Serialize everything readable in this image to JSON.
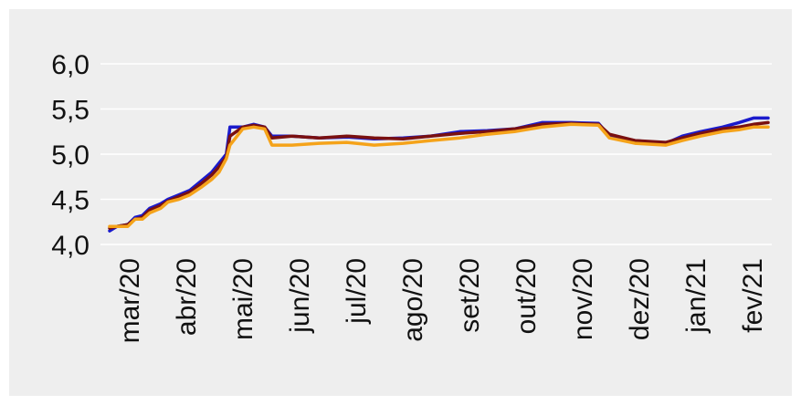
{
  "chart_data": {
    "type": "line",
    "title": "",
    "xlabel": "",
    "ylabel": "",
    "x_tick_labels": [
      "mar/20",
      "abr/20",
      "mai/20",
      "jun/20",
      "jul/20",
      "ago/20",
      "set/20",
      "out/20",
      "nov/20",
      "dez/20",
      "jan/21",
      "fev/21"
    ],
    "y_tick_labels": [
      "4,0",
      "4,5",
      "5,0",
      "5,5",
      "6,0"
    ],
    "ylim": [
      4.0,
      6.0
    ],
    "xlim": [
      "2020-02-26",
      "2021-02-28"
    ],
    "grid": "horizontal",
    "series": [
      {
        "color": "#1a1acc",
        "points": [
          [
            "2020-03-02",
            4.15
          ],
          [
            "2020-03-06",
            4.2
          ],
          [
            "2020-03-12",
            4.22
          ],
          [
            "2020-03-16",
            4.3
          ],
          [
            "2020-03-20",
            4.32
          ],
          [
            "2020-03-24",
            4.4
          ],
          [
            "2020-03-30",
            4.45
          ],
          [
            "2020-04-03",
            4.5
          ],
          [
            "2020-04-09",
            4.55
          ],
          [
            "2020-04-15",
            4.6
          ],
          [
            "2020-04-21",
            4.7
          ],
          [
            "2020-04-27",
            4.8
          ],
          [
            "2020-05-01",
            4.9
          ],
          [
            "2020-05-05",
            5.0
          ],
          [
            "2020-05-07",
            5.3
          ],
          [
            "2020-05-14",
            5.3
          ],
          [
            "2020-05-20",
            5.33
          ],
          [
            "2020-05-26",
            5.3
          ],
          [
            "2020-05-30",
            5.2
          ],
          [
            "2020-06-10",
            5.2
          ],
          [
            "2020-06-25",
            5.18
          ],
          [
            "2020-07-10",
            5.19
          ],
          [
            "2020-07-25",
            5.17
          ],
          [
            "2020-08-10",
            5.18
          ],
          [
            "2020-08-25",
            5.2
          ],
          [
            "2020-09-10",
            5.25
          ],
          [
            "2020-09-25",
            5.26
          ],
          [
            "2020-10-10",
            5.28
          ],
          [
            "2020-10-25",
            5.35
          ],
          [
            "2020-11-10",
            5.35
          ],
          [
            "2020-11-25",
            5.34
          ],
          [
            "2020-12-01",
            5.2
          ],
          [
            "2020-12-15",
            5.15
          ],
          [
            "2021-01-01",
            5.12
          ],
          [
            "2021-01-10",
            5.2
          ],
          [
            "2021-01-20",
            5.25
          ],
          [
            "2021-02-01",
            5.3
          ],
          [
            "2021-02-10",
            5.35
          ],
          [
            "2021-02-18",
            5.4
          ],
          [
            "2021-02-26",
            5.4
          ]
        ]
      },
      {
        "color": "#7a1010",
        "points": [
          [
            "2020-03-02",
            4.18
          ],
          [
            "2020-03-06",
            4.2
          ],
          [
            "2020-03-12",
            4.22
          ],
          [
            "2020-03-16",
            4.28
          ],
          [
            "2020-03-20",
            4.3
          ],
          [
            "2020-03-24",
            4.38
          ],
          [
            "2020-03-30",
            4.43
          ],
          [
            "2020-04-03",
            4.48
          ],
          [
            "2020-04-09",
            4.53
          ],
          [
            "2020-04-15",
            4.58
          ],
          [
            "2020-04-21",
            4.67
          ],
          [
            "2020-04-27",
            4.77
          ],
          [
            "2020-05-01",
            4.86
          ],
          [
            "2020-05-05",
            4.97
          ],
          [
            "2020-05-07",
            5.2
          ],
          [
            "2020-05-14",
            5.3
          ],
          [
            "2020-05-20",
            5.32
          ],
          [
            "2020-05-26",
            5.3
          ],
          [
            "2020-05-30",
            5.18
          ],
          [
            "2020-06-10",
            5.2
          ],
          [
            "2020-06-25",
            5.18
          ],
          [
            "2020-07-10",
            5.2
          ],
          [
            "2020-07-25",
            5.18
          ],
          [
            "2020-08-10",
            5.17
          ],
          [
            "2020-08-25",
            5.2
          ],
          [
            "2020-09-10",
            5.23
          ],
          [
            "2020-09-25",
            5.25
          ],
          [
            "2020-10-10",
            5.28
          ],
          [
            "2020-10-25",
            5.33
          ],
          [
            "2020-11-10",
            5.34
          ],
          [
            "2020-11-25",
            5.33
          ],
          [
            "2020-12-01",
            5.22
          ],
          [
            "2020-12-15",
            5.15
          ],
          [
            "2021-01-01",
            5.13
          ],
          [
            "2021-01-10",
            5.18
          ],
          [
            "2021-01-20",
            5.23
          ],
          [
            "2021-02-01",
            5.28
          ],
          [
            "2021-02-10",
            5.3
          ],
          [
            "2021-02-18",
            5.33
          ],
          [
            "2021-02-26",
            5.35
          ]
        ]
      },
      {
        "color": "#f5a31a",
        "points": [
          [
            "2020-03-02",
            4.2
          ],
          [
            "2020-03-06",
            4.2
          ],
          [
            "2020-03-12",
            4.2
          ],
          [
            "2020-03-16",
            4.28
          ],
          [
            "2020-03-20",
            4.28
          ],
          [
            "2020-03-24",
            4.35
          ],
          [
            "2020-03-30",
            4.4
          ],
          [
            "2020-04-03",
            4.47
          ],
          [
            "2020-04-09",
            4.5
          ],
          [
            "2020-04-15",
            4.55
          ],
          [
            "2020-04-21",
            4.63
          ],
          [
            "2020-04-27",
            4.72
          ],
          [
            "2020-05-01",
            4.8
          ],
          [
            "2020-05-05",
            4.95
          ],
          [
            "2020-05-07",
            5.1
          ],
          [
            "2020-05-14",
            5.28
          ],
          [
            "2020-05-20",
            5.3
          ],
          [
            "2020-05-26",
            5.28
          ],
          [
            "2020-05-30",
            5.1
          ],
          [
            "2020-06-10",
            5.1
          ],
          [
            "2020-06-25",
            5.12
          ],
          [
            "2020-07-10",
            5.13
          ],
          [
            "2020-07-25",
            5.1
          ],
          [
            "2020-08-10",
            5.12
          ],
          [
            "2020-08-25",
            5.15
          ],
          [
            "2020-09-10",
            5.18
          ],
          [
            "2020-09-25",
            5.22
          ],
          [
            "2020-10-10",
            5.25
          ],
          [
            "2020-10-25",
            5.3
          ],
          [
            "2020-11-10",
            5.33
          ],
          [
            "2020-11-25",
            5.32
          ],
          [
            "2020-12-01",
            5.18
          ],
          [
            "2020-12-15",
            5.12
          ],
          [
            "2021-01-01",
            5.1
          ],
          [
            "2021-01-10",
            5.15
          ],
          [
            "2021-01-20",
            5.2
          ],
          [
            "2021-02-01",
            5.25
          ],
          [
            "2021-02-10",
            5.27
          ],
          [
            "2021-02-18",
            5.3
          ],
          [
            "2021-02-26",
            5.3
          ]
        ]
      }
    ]
  }
}
